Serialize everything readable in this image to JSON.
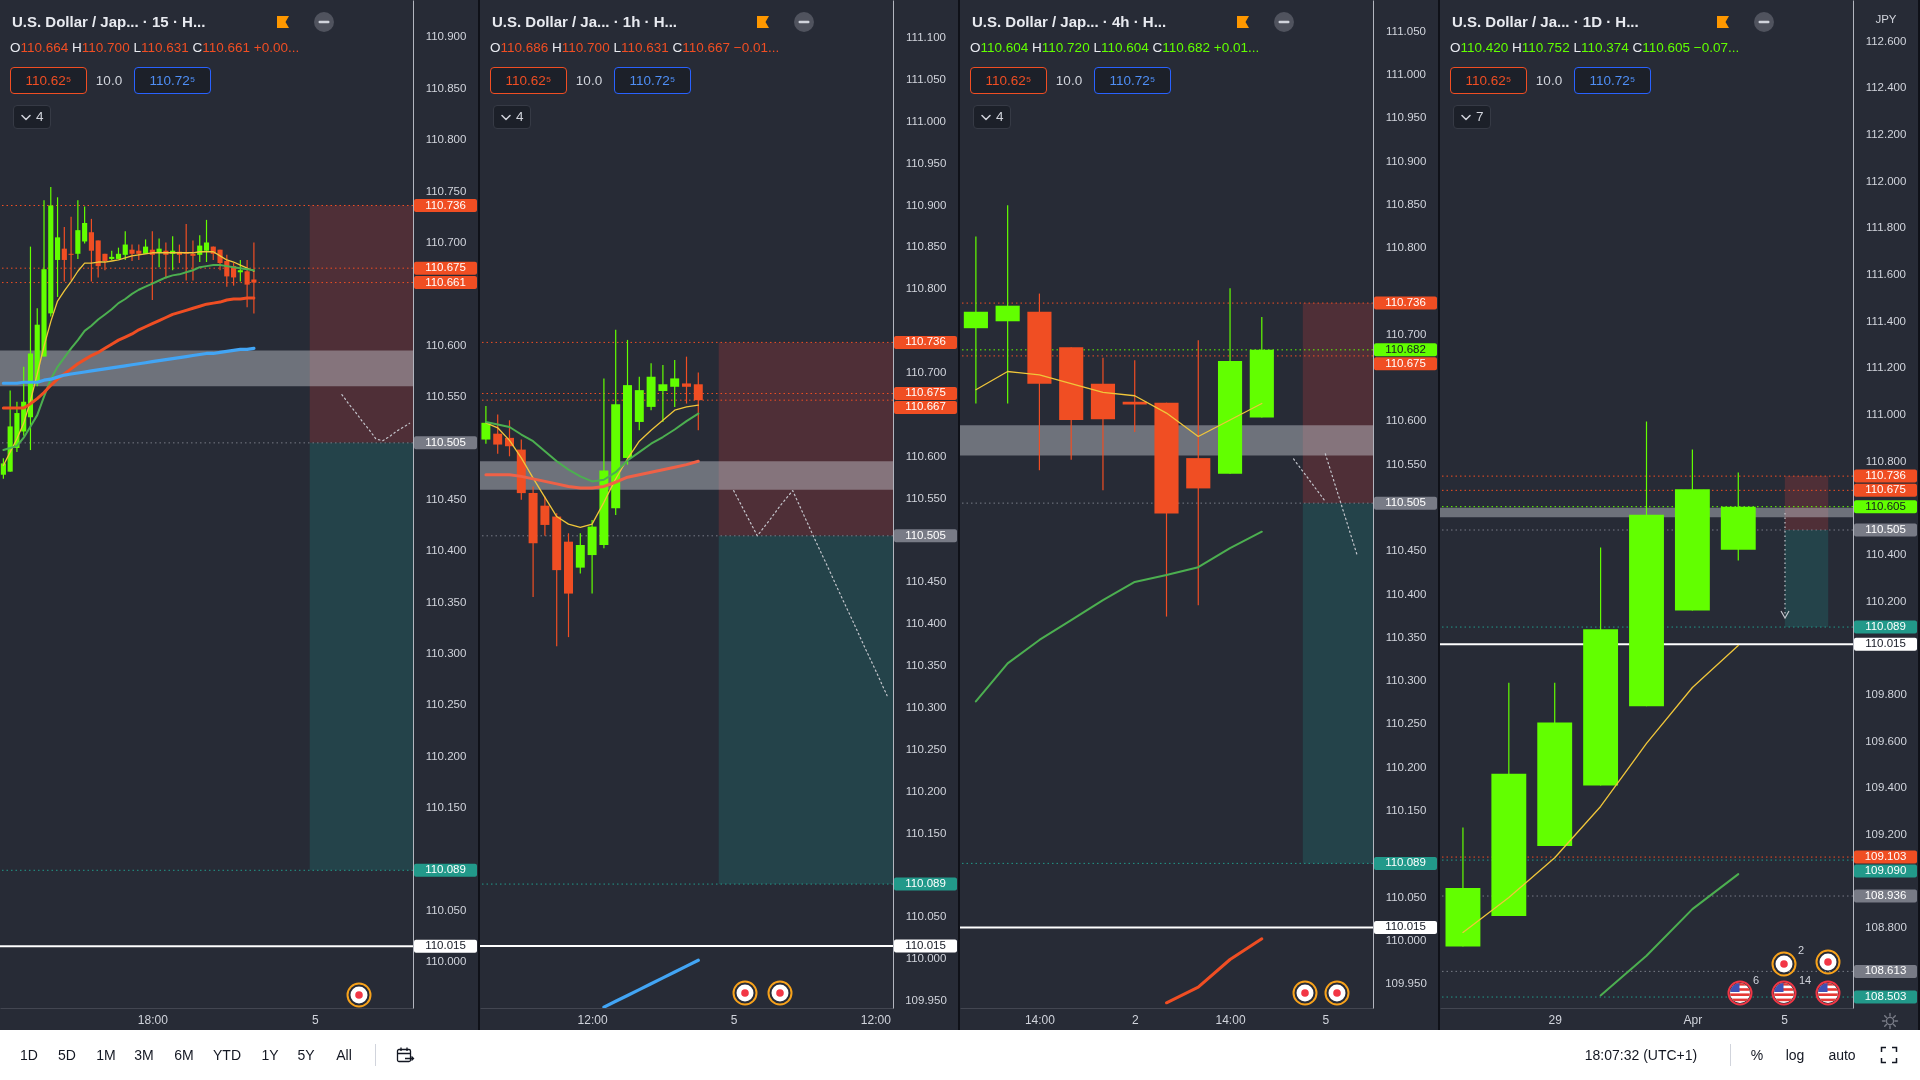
{
  "chart_data": [
    {
      "type": "candlestick",
      "title": "U.S. Dollar / Jap... · 15 · H...",
      "subtitle": "O110.664 H110.700 L110.631 C110.661 +0.00...",
      "annotations": [
        "110.62⁵",
        "10.0",
        "110.72⁵",
        "4"
      ],
      "categories": [
        null,
        null,
        null,
        null,
        null,
        null,
        null,
        null,
        null,
        null,
        null,
        null,
        null,
        null,
        null,
        null,
        null,
        null,
        null,
        null,
        null,
        null,
        "18:00",
        null,
        null,
        null,
        null,
        null,
        null,
        null,
        null,
        null,
        null,
        null,
        null,
        null,
        null,
        null,
        null,
        null,
        null,
        null,
        null,
        null,
        null,
        null,
        "5",
        null,
        null,
        null,
        null,
        null,
        null,
        null,
        null,
        null,
        null,
        null,
        null,
        null,
        null
      ],
      "ohlc": [
        [
          110.474,
          110.49,
          110.47,
          110.485
        ],
        [
          110.477,
          110.556,
          110.477,
          110.521
        ],
        [
          110.5,
          110.545,
          110.496,
          110.534
        ],
        [
          110.516,
          110.579,
          110.512,
          110.545
        ],
        [
          110.53,
          110.696,
          110.498,
          110.592
        ],
        [
          110.563,
          110.636,
          110.56,
          110.62
        ],
        [
          110.589,
          110.741,
          110.589,
          110.674
        ],
        [
          110.631,
          110.754,
          110.628,
          110.736
        ],
        [
          110.683,
          110.744,
          110.647,
          110.705
        ],
        [
          110.694,
          110.715,
          110.662,
          110.683
        ],
        [
          110.689,
          110.725,
          110.663,
          110.688
        ],
        [
          110.689,
          110.741,
          110.684,
          110.712
        ],
        [
          110.701,
          110.735,
          110.699,
          110.719
        ],
        [
          110.71,
          110.723,
          110.662,
          110.692
        ],
        [
          110.702,
          110.702,
          110.666,
          110.677
        ],
        [
          110.689,
          110.689,
          110.673,
          110.682
        ],
        [
          110.684,
          110.692,
          110.683,
          110.686
        ],
        [
          110.684,
          110.695,
          110.684,
          110.689
        ],
        [
          110.688,
          110.711,
          110.683,
          110.698
        ],
        [
          110.693,
          110.698,
          110.682,
          110.689
        ],
        [
          110.692,
          110.698,
          110.683,
          110.689
        ],
        [
          110.689,
          110.703,
          110.689,
          110.696
        ],
        [
          110.693,
          110.711,
          110.644,
          110.688
        ],
        [
          110.69,
          110.704,
          110.676,
          110.694
        ],
        [
          110.692,
          110.7,
          110.665,
          110.688
        ],
        [
          110.689,
          110.706,
          110.673,
          110.692
        ],
        [
          110.691,
          110.698,
          110.68,
          110.688
        ],
        [
          110.69,
          110.718,
          110.663,
          110.689
        ],
        [
          110.689,
          110.702,
          110.663,
          110.687
        ],
        [
          110.688,
          110.707,
          110.681,
          110.697
        ],
        [
          110.692,
          110.722,
          110.681,
          110.7
        ],
        [
          110.696,
          110.696,
          110.683,
          110.689
        ],
        [
          110.693,
          110.693,
          110.673,
          110.68
        ],
        [
          110.682,
          110.688,
          110.657,
          110.667
        ],
        [
          110.677,
          110.68,
          110.658,
          110.666
        ],
        [
          110.671,
          110.683,
          110.662,
          110.673
        ],
        [
          110.672,
          110.683,
          110.637,
          110.659
        ],
        [
          110.664,
          110.7,
          110.631,
          110.661
        ],
        null,
        null,
        null,
        null,
        null,
        null,
        null,
        null,
        null,
        null,
        null,
        null,
        null,
        null,
        null,
        null,
        null,
        null,
        null,
        null,
        null,
        null,
        null
      ],
      "series": [
        {
          "type": "line",
          "color": "#f0c63a",
          "values": [
            110.483,
            110.496,
            110.509,
            110.524,
            110.546,
            110.572,
            110.599,
            110.623,
            110.643,
            110.653,
            110.662,
            110.672,
            110.68,
            110.68,
            110.681,
            110.681,
            110.682,
            110.683,
            110.685,
            110.687,
            110.688,
            110.689,
            110.69,
            110.69,
            110.69,
            110.69,
            110.69,
            110.69,
            110.69,
            110.691,
            110.691,
            110.691,
            110.687,
            110.683,
            110.681,
            110.678,
            110.675,
            110.672,
            null,
            null,
            null,
            null,
            null,
            null,
            null,
            null,
            null,
            null,
            null,
            null,
            null,
            null,
            null,
            null,
            null,
            null,
            null,
            null,
            null,
            null,
            null
          ]
        },
        {
          "type": "line",
          "color": "#4caf50",
          "values": [
            110.498,
            110.5,
            110.502,
            110.51,
            110.521,
            110.532,
            110.55,
            110.567,
            110.579,
            110.588,
            110.597,
            110.605,
            110.614,
            110.619,
            110.625,
            110.63,
            110.635,
            110.641,
            110.645,
            110.65,
            110.654,
            110.657,
            110.66,
            110.663,
            110.666,
            110.668,
            110.669,
            110.671,
            110.673,
            110.676,
            110.677,
            110.678,
            110.678,
            110.677,
            110.676,
            110.675,
            110.674,
            110.673,
            null,
            null,
            null,
            null,
            null,
            null,
            null,
            null,
            null,
            null,
            null,
            null,
            null,
            null,
            null,
            null,
            null,
            null,
            null,
            null,
            null,
            null,
            null
          ]
        },
        {
          "type": "line",
          "color": "#f04e23",
          "values": [
            110.539,
            110.539,
            110.539,
            110.539,
            110.543,
            110.548,
            110.554,
            110.561,
            110.567,
            110.572,
            110.577,
            110.582,
            110.586,
            110.59,
            110.593,
            110.597,
            110.601,
            110.605,
            110.608,
            110.611,
            110.615,
            110.618,
            110.621,
            110.624,
            110.627,
            110.63,
            110.632,
            110.634,
            110.636,
            110.638,
            110.64,
            110.641,
            110.642,
            110.644,
            110.645,
            110.645,
            110.646,
            110.646,
            null,
            null,
            null,
            null,
            null,
            null,
            null,
            null,
            null,
            null,
            null,
            null,
            null,
            null,
            null,
            null,
            null,
            null,
            null,
            null,
            null,
            null,
            null
          ]
        },
        {
          "type": "line",
          "color": "#42a5f5",
          "values": [
            110.563,
            110.563,
            110.563,
            110.564,
            110.564,
            110.564,
            110.566,
            110.567,
            110.569,
            110.571,
            110.572,
            110.573,
            110.574,
            110.575,
            110.576,
            110.577,
            110.578,
            110.579,
            110.58,
            110.581,
            110.582,
            110.583,
            110.584,
            110.585,
            110.586,
            110.587,
            110.588,
            110.589,
            110.59,
            110.591,
            110.592,
            110.592,
            110.593,
            110.594,
            110.595,
            110.596,
            110.596,
            110.597,
            null,
            null,
            null,
            null,
            null,
            null,
            null,
            null,
            null,
            null,
            null,
            null,
            null,
            null,
            null,
            null,
            null,
            null,
            null,
            null,
            null,
            null,
            null
          ]
        },
        {
          "type": "line",
          "color": "#c3c5cc",
          "line_style": "dotted",
          "values": [
            null,
            null,
            null,
            null,
            null,
            null,
            null,
            null,
            null,
            null,
            null,
            null,
            null,
            null,
            null,
            null,
            null,
            null,
            null,
            null,
            null,
            null,
            null,
            null,
            null,
            null,
            null,
            null,
            null,
            null,
            null,
            null,
            null,
            null,
            null,
            null,
            null,
            null,
            null,
            null,
            null,
            null,
            null,
            null,
            null,
            null,
            null,
            null,
            null,
            null,
            110.552,
            110.543,
            110.535,
            110.526,
            110.518,
            110.509,
            110.507,
            110.511,
            110.516,
            110.52,
            110.524
          ]
        }
      ],
      "bands": [
        {
          "axis": "y",
          "from": 110.505,
          "to": 110.736,
          "color": "#4f2f37"
        },
        {
          "axis": "y",
          "from": 110.089,
          "to": 110.505,
          "color": "#24434a"
        },
        {
          "axis": "y",
          "from": 110.56,
          "to": 110.595,
          "color": "#d1d4dc"
        }
      ],
      "ref_lines": [
        {
          "axis": "y",
          "value": 110.736,
          "label": "110.736",
          "color": "#f04e23",
          "line_style": "dotted"
        },
        {
          "axis": "y",
          "value": 110.675,
          "label": "110.675",
          "color": "#f04e23",
          "line_style": "dotted"
        },
        {
          "axis": "y",
          "value": 110.661,
          "label": "110.661",
          "color": "#f04e23",
          "line_style": "dotted"
        },
        {
          "axis": "y",
          "value": 110.505,
          "label": "110.505",
          "color": "#787b86",
          "line_style": "dotted"
        },
        {
          "axis": "y",
          "value": 110.089,
          "label": "110.089",
          "color": "#22998a",
          "line_style": "dotted"
        },
        {
          "axis": "y",
          "value": 110.015,
          "label": "110.015",
          "color": "#ffffff",
          "line_style": "solid"
        }
      ],
      "ylim": [
        109.955,
        110.936
      ],
      "yticks": [
        {
          "value": 110,
          "label": "110.000"
        },
        {
          "value": 110.05,
          "label": "110.050"
        },
        {
          "value": 110.15,
          "label": "110.150"
        },
        {
          "value": 110.2,
          "label": "110.200"
        },
        {
          "value": 110.25,
          "label": "110.250"
        },
        {
          "value": 110.3,
          "label": "110.300"
        },
        {
          "value": 110.35,
          "label": "110.350"
        },
        {
          "value": 110.4,
          "label": "110.400"
        },
        {
          "value": 110.45,
          "label": "110.450"
        },
        {
          "value": 110.55,
          "label": "110.550"
        },
        {
          "value": 110.6,
          "label": "110.600"
        },
        {
          "value": 110.7,
          "label": "110.700"
        },
        {
          "value": 110.75,
          "label": "110.750"
        },
        {
          "value": 110.8,
          "label": "110.800"
        },
        {
          "value": 110.85,
          "label": "110.850"
        },
        {
          "value": 110.9,
          "label": "110.900"
        }
      ]
    },
    {
      "type": "candlestick",
      "title": "U.S. Dollar / Ja... · 1h · H...",
      "subtitle": "O110.686 H110.700 L110.631 C110.667 −0.01...",
      "annotations": [
        "110.62⁵",
        "10.0",
        "110.72⁵",
        "4"
      ],
      "categories": [
        null,
        null,
        null,
        null,
        null,
        null,
        null,
        null,
        null,
        "12:00",
        null,
        null,
        null,
        null,
        null,
        null,
        null,
        null,
        null,
        null,
        null,
        "5",
        null,
        null,
        null,
        null,
        null,
        null,
        null,
        null,
        null,
        null,
        null,
        "12:00",
        null
      ],
      "ohlc": [
        [
          110.62,
          110.66,
          110.615,
          110.64
        ],
        [
          110.627,
          110.65,
          110.603,
          110.614
        ],
        [
          110.622,
          110.643,
          110.6,
          110.612
        ],
        [
          110.608,
          110.62,
          110.548,
          110.556
        ],
        [
          110.556,
          110.564,
          110.432,
          110.496
        ],
        [
          110.541,
          110.552,
          110.505,
          110.518
        ],
        [
          110.528,
          110.532,
          110.373,
          110.464
        ],
        [
          110.498,
          110.508,
          110.384,
          110.436
        ],
        [
          110.467,
          110.508,
          110.46,
          110.494
        ],
        [
          110.482,
          110.524,
          110.436,
          110.516
        ],
        [
          110.494,
          110.693,
          110.49,
          110.583
        ],
        [
          110.538,
          110.751,
          110.53,
          110.662
        ],
        [
          110.598,
          110.739,
          110.59,
          110.685
        ],
        [
          110.641,
          110.695,
          110.631,
          110.679
        ],
        [
          110.659,
          110.711,
          110.655,
          110.695
        ],
        [
          110.678,
          110.709,
          110.641,
          110.686
        ],
        [
          110.683,
          110.715,
          110.659,
          110.693
        ],
        [
          110.687,
          110.719,
          110.663,
          110.683
        ],
        [
          110.686,
          110.7,
          110.631,
          110.667
        ],
        null,
        null,
        null,
        null,
        null,
        null,
        null,
        null,
        null,
        null,
        null,
        null,
        null,
        null,
        null,
        null
      ],
      "series": [
        {
          "type": "line",
          "color": "#f0c63a",
          "values": [
            110.64,
            110.634,
            110.619,
            110.598,
            110.574,
            110.551,
            110.528,
            110.519,
            110.515,
            110.519,
            110.545,
            110.573,
            110.597,
            110.618,
            110.631,
            110.643,
            110.655,
            110.659,
            110.661,
            null,
            null,
            null,
            null,
            null,
            null,
            null,
            null,
            null,
            null,
            null,
            null,
            null,
            null,
            null,
            null
          ]
        },
        {
          "type": "line",
          "color": "#4caf50",
          "values": [
            110.641,
            110.638,
            110.635,
            110.626,
            110.618,
            110.606,
            110.594,
            110.584,
            110.576,
            110.57,
            110.572,
            110.581,
            110.595,
            110.605,
            110.615,
            110.623,
            110.632,
            110.642,
            110.651,
            null,
            null,
            null,
            null,
            null,
            null,
            null,
            null,
            null,
            null,
            null,
            null,
            null,
            null,
            null,
            null
          ]
        },
        {
          "type": "line",
          "color": "#ef6147",
          "values": [
            110.578,
            110.578,
            110.578,
            110.576,
            110.573,
            110.57,
            110.567,
            110.564,
            110.562,
            110.562,
            110.564,
            110.569,
            110.575,
            110.578,
            110.581,
            110.584,
            110.587,
            110.59,
            110.594,
            null,
            null,
            null,
            null,
            null,
            null,
            null,
            null,
            null,
            null,
            null,
            null,
            null,
            null,
            null,
            null
          ]
        },
        {
          "type": "line",
          "color": "#42a5f5",
          "values": [
            null,
            null,
            null,
            null,
            null,
            null,
            null,
            null,
            null,
            null,
            109.942,
            109.949,
            109.956,
            109.963,
            109.97,
            109.977,
            109.984,
            109.991,
            109.998,
            null,
            null,
            null,
            null,
            null,
            null,
            null,
            null,
            null,
            null,
            null,
            null,
            null,
            null,
            null,
            null
          ]
        },
        {
          "type": "line",
          "color": "#c3c5cc",
          "line_style": "dotted",
          "values": [
            null,
            null,
            null,
            null,
            null,
            null,
            null,
            null,
            null,
            null,
            null,
            null,
            null,
            null,
            null,
            null,
            null,
            null,
            null,
            null,
            null,
            110.559,
            110.532,
            110.505,
            110.523,
            110.542,
            110.559,
            110.528,
            110.497,
            110.467,
            110.436,
            110.406,
            110.375,
            110.345,
            110.314
          ]
        }
      ],
      "bands": [
        {
          "axis": "y",
          "from": 110.505,
          "to": 110.736,
          "color": "#4f2f37"
        },
        {
          "axis": "y",
          "from": 110.089,
          "to": 110.505,
          "color": "#24434a"
        },
        {
          "axis": "y",
          "from": 110.56,
          "to": 110.594,
          "color": "#d1d4dc"
        }
      ],
      "ref_lines": [
        {
          "axis": "y",
          "value": 110.736,
          "label": "110.736",
          "color": "#f04e23",
          "line_style": "dotted"
        },
        {
          "axis": "y",
          "value": 110.675,
          "label": "110.675",
          "color": "#f04e23",
          "line_style": "dotted"
        },
        {
          "axis": "y",
          "value": 110.667,
          "label": "110.667",
          "color": "#f04e23",
          "line_style": "dotted"
        },
        {
          "axis": "y",
          "value": 110.505,
          "label": "110.505",
          "color": "#787b86",
          "line_style": "dotted"
        },
        {
          "axis": "y",
          "value": 110.089,
          "label": "110.089",
          "color": "#22998a",
          "line_style": "dotted"
        },
        {
          "axis": "y",
          "value": 110.015,
          "label": "110.015",
          "color": "#ffffff",
          "line_style": "solid"
        }
      ],
      "ylim": [
        109.941,
        111.145
      ],
      "yticks": [
        {
          "value": 109.95,
          "label": "109.950"
        },
        {
          "value": 110,
          "label": "110.000"
        },
        {
          "value": 110.05,
          "label": "110.050"
        },
        {
          "value": 110.15,
          "label": "110.150"
        },
        {
          "value": 110.2,
          "label": "110.200"
        },
        {
          "value": 110.25,
          "label": "110.250"
        },
        {
          "value": 110.3,
          "label": "110.300"
        },
        {
          "value": 110.35,
          "label": "110.350"
        },
        {
          "value": 110.4,
          "label": "110.400"
        },
        {
          "value": 110.45,
          "label": "110.450"
        },
        {
          "value": 110.55,
          "label": "110.550"
        },
        {
          "value": 110.6,
          "label": "110.600"
        },
        {
          "value": 110.7,
          "label": "110.700"
        },
        {
          "value": 110.8,
          "label": "110.800"
        },
        {
          "value": 110.85,
          "label": "110.850"
        },
        {
          "value": 110.9,
          "label": "110.900"
        },
        {
          "value": 110.95,
          "label": "110.950"
        },
        {
          "value": 111,
          "label": "111.000"
        },
        {
          "value": 111.05,
          "label": "111.050"
        },
        {
          "value": 111.1,
          "label": "111.100"
        }
      ]
    },
    {
      "type": "candlestick",
      "title": "U.S. Dollar / Jap... · 4h · H...",
      "subtitle": "O110.604 H110.720 L110.604 C110.682 +0.01...",
      "annotations": [
        "110.62⁵",
        "10.0",
        "110.72⁵",
        "4"
      ],
      "categories": [
        null,
        null,
        "14:00",
        null,
        null,
        "2",
        null,
        null,
        "14:00",
        null,
        null,
        "5",
        null
      ],
      "ohlc": [
        [
          110.707,
          110.813,
          110.62,
          110.726
        ],
        [
          110.715,
          110.849,
          110.62,
          110.733
        ],
        [
          110.726,
          110.747,
          110.543,
          110.643
        ],
        [
          110.685,
          110.685,
          110.555,
          110.601
        ],
        [
          110.643,
          110.673,
          110.52,
          110.602
        ],
        [
          110.622,
          110.67,
          110.587,
          110.619
        ],
        [
          110.621,
          110.621,
          110.374,
          110.493
        ],
        [
          110.557,
          110.693,
          110.387,
          110.522
        ],
        [
          110.539,
          110.753,
          110.539,
          110.669
        ],
        [
          110.604,
          110.72,
          110.604,
          110.682
        ],
        null,
        null,
        null
      ],
      "series": [
        {
          "type": "line",
          "color": "#f0c63a",
          "values": [
            110.636,
            110.657,
            110.653,
            110.643,
            110.633,
            110.629,
            110.609,
            110.582,
            110.601,
            110.62,
            null,
            null,
            null
          ]
        },
        {
          "type": "line",
          "color": "#4caf50",
          "values": [
            110.276,
            110.32,
            110.347,
            110.37,
            110.393,
            110.414,
            110.422,
            110.431,
            110.453,
            110.472,
            null,
            null,
            null
          ]
        },
        {
          "type": "line",
          "color": "#f04e23",
          "values": [
            null,
            null,
            null,
            null,
            null,
            null,
            109.928,
            109.946,
            109.978,
            110.002,
            null,
            null,
            null
          ]
        },
        {
          "type": "line",
          "color": "#c3c5cc",
          "line_style": "dotted",
          "values": [
            null,
            null,
            null,
            null,
            null,
            null,
            null,
            null,
            null,
            null,
            110.556,
            110.507,
            null
          ]
        },
        {
          "type": "line",
          "color": "#c3c5cc",
          "line_style": "dotted",
          "values": [
            null,
            null,
            null,
            null,
            null,
            null,
            null,
            null,
            null,
            null,
            null,
            110.562,
            110.445
          ]
        }
      ],
      "bands": [
        {
          "axis": "y",
          "from": 110.505,
          "to": 110.736,
          "color": "#4f2f37"
        },
        {
          "axis": "y",
          "from": 110.089,
          "to": 110.505,
          "color": "#24434a"
        },
        {
          "axis": "y",
          "from": 110.56,
          "to": 110.595,
          "color": "#d1d4dc"
        }
      ],
      "ref_lines": [
        {
          "axis": "y",
          "value": 110.736,
          "label": "110.736",
          "color": "#f04e23",
          "line_style": "dotted"
        },
        {
          "axis": "y",
          "value": 110.682,
          "label": "110.682",
          "color": "#62ff00",
          "line_style": "dotted"
        },
        {
          "axis": "y",
          "value": 110.675,
          "label": "110.675",
          "color": "#f04e23",
          "line_style": "dotted"
        },
        {
          "axis": "y",
          "value": 110.505,
          "label": "110.505",
          "color": "#787b86",
          "line_style": "dotted"
        },
        {
          "axis": "y",
          "value": 110.089,
          "label": "110.089",
          "color": "#22998a",
          "line_style": "dotted"
        },
        {
          "axis": "y",
          "value": 110.015,
          "label": "110.015",
          "color": "#ffffff",
          "line_style": "solid"
        }
      ],
      "ylim": [
        109.922,
        111.086
      ],
      "yticks": [
        {
          "value": 109.95,
          "label": "109.950"
        },
        {
          "value": 110,
          "label": "110.000"
        },
        {
          "value": 110.05,
          "label": "110.050"
        },
        {
          "value": 110.15,
          "label": "110.150"
        },
        {
          "value": 110.2,
          "label": "110.200"
        },
        {
          "value": 110.25,
          "label": "110.250"
        },
        {
          "value": 110.3,
          "label": "110.300"
        },
        {
          "value": 110.35,
          "label": "110.350"
        },
        {
          "value": 110.4,
          "label": "110.400"
        },
        {
          "value": 110.45,
          "label": "110.450"
        },
        {
          "value": 110.55,
          "label": "110.550"
        },
        {
          "value": 110.6,
          "label": "110.600"
        },
        {
          "value": 110.7,
          "label": "110.700"
        },
        {
          "value": 110.8,
          "label": "110.800"
        },
        {
          "value": 110.85,
          "label": "110.850"
        },
        {
          "value": 110.9,
          "label": "110.900"
        },
        {
          "value": 110.95,
          "label": "110.950"
        },
        {
          "value": 111,
          "label": "111.000"
        },
        {
          "value": 111.05,
          "label": "111.050"
        }
      ]
    },
    {
      "type": "candlestick",
      "title": "U.S. Dollar / Ja... · 1D · H...",
      "subtitle": "O110.420 H110.752 L110.374 C110.605 −0.07...",
      "ylabel": "JPY",
      "annotations": [
        "110.62⁵",
        "10.0",
        "110.72⁵",
        "7",
        "2",
        "6",
        "14"
      ],
      "categories": [
        null,
        null,
        "29",
        null,
        null,
        "Apr",
        null,
        "5",
        null
      ],
      "ohlc": [
        [
          108.72,
          109.23,
          108.72,
          108.97
        ],
        [
          108.85,
          109.85,
          108.85,
          109.46
        ],
        [
          109.15,
          109.85,
          109.15,
          109.68
        ],
        [
          109.41,
          110.43,
          109.41,
          110.08
        ],
        [
          109.75,
          110.97,
          109.75,
          110.57
        ],
        [
          110.16,
          110.85,
          110.16,
          110.68
        ],
        [
          110.42,
          110.752,
          110.374,
          110.605
        ],
        null,
        null
      ],
      "series": [
        {
          "type": "line",
          "color": "#f0c63a",
          "values": [
            108.78,
            108.93,
            109.1,
            109.32,
            109.59,
            109.83,
            110.01,
            null,
            null
          ]
        },
        {
          "type": "line",
          "color": "#4caf50",
          "values": [
            null,
            null,
            null,
            108.51,
            108.68,
            108.88,
            109.03,
            null,
            null
          ]
        }
      ],
      "bands": [
        {
          "axis": "y",
          "from": 110.505,
          "to": 110.736,
          "color": "#4f2f37"
        },
        {
          "axis": "y",
          "from": 110.089,
          "to": 110.505,
          "color": "#24434a"
        },
        {
          "axis": "y",
          "from": 110.56,
          "to": 110.6,
          "color": "#d1d4dc"
        }
      ],
      "ref_lines": [
        {
          "axis": "y",
          "value": 110.736,
          "label": "110.736",
          "color": "#f04e23",
          "line_style": "dotted"
        },
        {
          "axis": "y",
          "value": 110.675,
          "label": "110.675",
          "color": "#f04e23",
          "line_style": "dotted"
        },
        {
          "axis": "y",
          "value": 110.605,
          "label": "110.605",
          "color": "#62ff00",
          "line_style": "dotted"
        },
        {
          "axis": "y",
          "value": 110.505,
          "label": "110.505",
          "color": "#787b86",
          "line_style": "dotted"
        },
        {
          "axis": "y",
          "value": 110.089,
          "label": "110.089",
          "color": "#22998a",
          "line_style": "dotted"
        },
        {
          "axis": "y",
          "value": 110.015,
          "label": "110.015",
          "color": "#ffffff",
          "line_style": "solid"
        },
        {
          "axis": "y",
          "value": 109.103,
          "label": "109.103",
          "color": "#f04e23",
          "line_style": "dotted"
        },
        {
          "axis": "y",
          "value": 109.09,
          "label": "109.090",
          "color": "#22998a",
          "line_style": "dotted"
        },
        {
          "axis": "y",
          "value": 108.936,
          "label": "108.936",
          "color": "#787b86",
          "line_style": "dotted"
        },
        {
          "axis": "y",
          "value": 108.613,
          "label": "108.613",
          "color": "#787b86",
          "line_style": "dotted"
        },
        {
          "axis": "y",
          "value": 108.503,
          "label": "108.503",
          "color": "#22998a",
          "line_style": "dotted"
        }
      ],
      "ylim": [
        108.456,
        112.777
      ],
      "yticks": [
        {
          "value": 108.8,
          "label": "108.800"
        },
        {
          "value": 109.2,
          "label": "109.200"
        },
        {
          "value": 109.4,
          "label": "109.400"
        },
        {
          "value": 109.6,
          "label": "109.600"
        },
        {
          "value": 109.8,
          "label": "109.800"
        },
        {
          "value": 110.2,
          "label": "110.200"
        },
        {
          "value": 110.4,
          "label": "110.400"
        },
        {
          "value": 110.8,
          "label": "110.800"
        },
        {
          "value": 111,
          "label": "111.000"
        },
        {
          "value": 111.2,
          "label": "111.200"
        },
        {
          "value": 111.4,
          "label": "111.400"
        },
        {
          "value": 111.6,
          "label": "111.600"
        },
        {
          "value": 111.8,
          "label": "111.800"
        },
        {
          "value": 112,
          "label": "112.000"
        },
        {
          "value": 112.2,
          "label": "112.200"
        },
        {
          "value": 112.4,
          "label": "112.400"
        },
        {
          "value": 112.6,
          "label": "112.600"
        }
      ]
    },
    {
      "type": "other",
      "annotations": [
        "1D",
        "5D",
        "1M",
        "3M",
        "6M",
        "YTD",
        "1Y",
        "5Y",
        "All",
        "18:07:32 (UTC+1)",
        "%",
        "log",
        "auto"
      ]
    }
  ]
}
